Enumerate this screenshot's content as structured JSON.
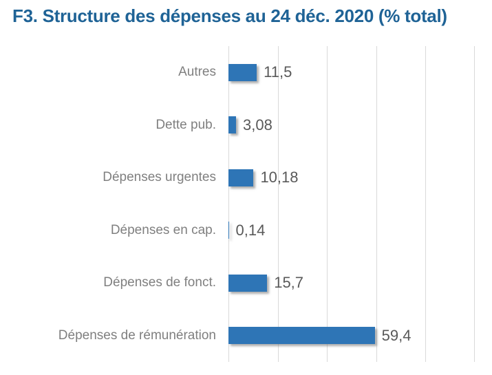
{
  "chart_data": {
    "type": "bar",
    "orientation": "horizontal",
    "title": "F3. Structure des dépenses au 24 déc. 2020 (% total)",
    "categories": [
      "Autres",
      "Dette pub.",
      "Dépenses urgentes",
      "Dépenses en cap.",
      "Dépenses de fonct.",
      "Dépenses de rémunération"
    ],
    "values": [
      11.5,
      3.08,
      10.18,
      0.14,
      15.7,
      59.4
    ],
    "value_labels": [
      "11,5",
      "3,08",
      "10,18",
      "0,14",
      "15,7",
      "59,4"
    ],
    "xlabel": "",
    "ylabel": "",
    "xlim": [
      0,
      100
    ],
    "tick_step": 20,
    "grid": true,
    "legend": false,
    "colors": {
      "bar": "#2E75B6",
      "title": "#1F6396",
      "gridline": "#D9D9D9",
      "category_label": "#7F7F7F",
      "value_label": "#595959"
    }
  }
}
